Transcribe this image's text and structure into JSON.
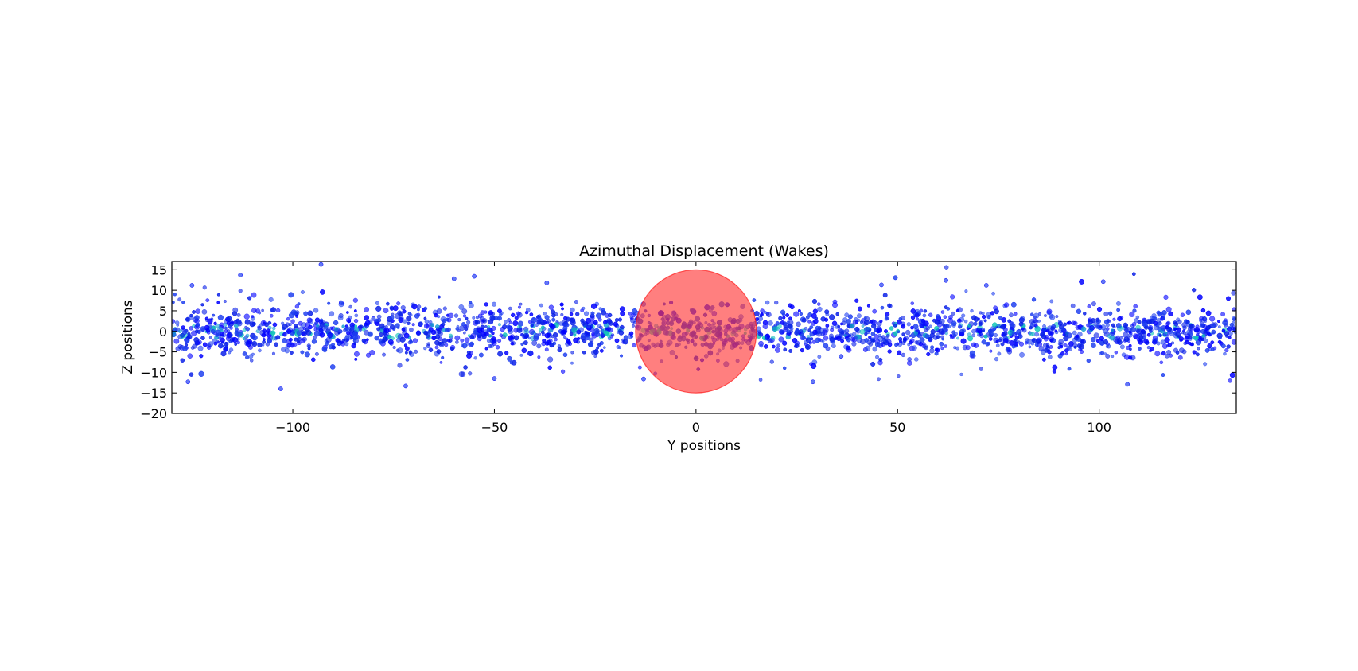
{
  "chart_data": {
    "type": "scatter",
    "title": "Azimuthal Displacement (Wakes)",
    "xlabel": "Y positions",
    "ylabel": "Z positions",
    "xlim": [
      -130,
      134
    ],
    "ylim": [
      -20,
      17
    ],
    "x_ticks": [
      -100,
      -50,
      0,
      50,
      100
    ],
    "x_tick_labels": [
      "−100",
      "−50",
      "0",
      "50",
      "100"
    ],
    "y_ticks": [
      15,
      10,
      5,
      0,
      -5,
      -10,
      -15,
      -20
    ],
    "y_tick_labels": [
      "15",
      "10",
      "5",
      "0",
      "−5",
      "−10",
      "−15",
      "−20"
    ],
    "grid": false,
    "legend": "none",
    "particle_colors": [
      "#0000ff",
      "#1f3ff0",
      "#0a20e8",
      "#12c4b8",
      "#1aa0d0"
    ],
    "disk": {
      "center": [
        0,
        0
      ],
      "radius": 15,
      "color": "#ff3b3b",
      "opacity": 0.65
    },
    "points": [
      [
        -93,
        16.3
      ],
      [
        -55,
        13.4
      ],
      [
        -113,
        13.7
      ],
      [
        -60,
        12.8
      ],
      [
        -125,
        11.2
      ],
      [
        101,
        12.1
      ],
      [
        62,
        12.4
      ],
      [
        72,
        11.2
      ],
      [
        46,
        11.3
      ],
      [
        -37,
        11.8
      ],
      [
        -103,
        -14.0
      ],
      [
        -72,
        -13.3
      ],
      [
        -126,
        -12.3
      ],
      [
        107,
        -12.9
      ],
      [
        29,
        -12.3
      ],
      [
        -13,
        -11.6
      ],
      [
        -50,
        -11.5
      ],
      [
        36,
        -6.1
      ],
      [
        -88,
        7.0
      ],
      [
        -80,
        3.1
      ]
    ]
  }
}
